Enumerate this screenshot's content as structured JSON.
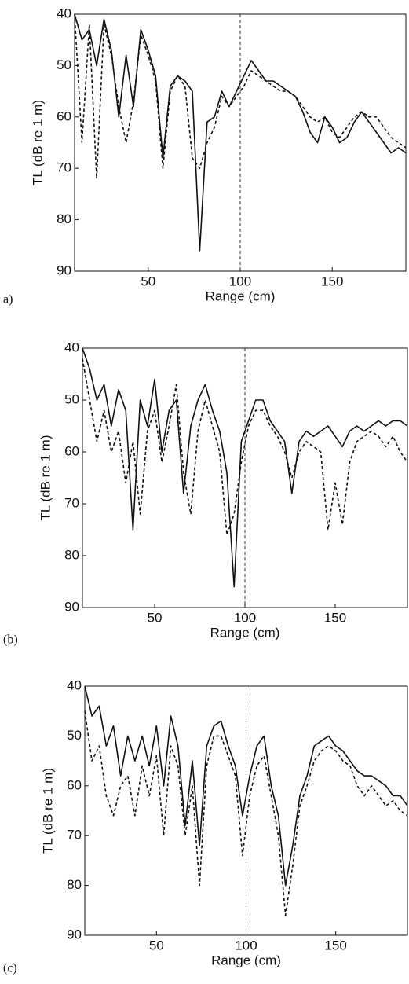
{
  "chart_data": [
    {
      "type": "line",
      "panel_label": "a)",
      "xlabel": "Range (cm)",
      "ylabel": "TL (dB re 1 m)",
      "xlim": [
        10,
        190
      ],
      "xticks": [
        50,
        100,
        150
      ],
      "ylim": [
        40,
        90
      ],
      "yticks": [
        40,
        50,
        60,
        70,
        80,
        90
      ],
      "invert_y": true,
      "grid": false,
      "vline": 100,
      "x": [
        10,
        14,
        18,
        22,
        26,
        30,
        34,
        38,
        42,
        46,
        50,
        54,
        58,
        62,
        66,
        70,
        74,
        78,
        82,
        86,
        90,
        94,
        98,
        102,
        106,
        110,
        114,
        118,
        122,
        126,
        130,
        134,
        138,
        142,
        146,
        150,
        154,
        158,
        162,
        166,
        170,
        174,
        178,
        182,
        186,
        190
      ],
      "series": [
        {
          "color": "#111111",
          "style": "solid",
          "values": [
            40,
            45,
            43,
            50,
            41,
            47,
            60,
            48,
            58,
            43,
            47,
            52,
            68,
            54,
            52,
            53,
            55,
            86,
            61,
            60,
            55,
            58,
            55,
            52,
            49,
            51,
            53,
            53,
            54,
            55,
            56,
            59,
            63,
            65,
            60,
            62,
            65,
            64,
            61,
            59,
            61,
            63,
            65,
            67,
            66,
            67
          ]
        },
        {
          "color": "#111111",
          "style": "dashed",
          "values": [
            40,
            65,
            42,
            72,
            42,
            48,
            58,
            65,
            57,
            44,
            48,
            53,
            70,
            55,
            52,
            54,
            68,
            70,
            65,
            62,
            56,
            58,
            56,
            54,
            51,
            52,
            53,
            54,
            55,
            55,
            56,
            58,
            60,
            61,
            60,
            63,
            64,
            62,
            60,
            59,
            60,
            60,
            62,
            64,
            65,
            66
          ]
        }
      ]
    },
    {
      "type": "line",
      "panel_label": "(b)",
      "xlabel": "Range (cm)",
      "ylabel": "TL (dB re 1 m)",
      "xlim": [
        10,
        190
      ],
      "xticks": [
        50,
        100,
        150
      ],
      "ylim": [
        40,
        90
      ],
      "yticks": [
        40,
        50,
        60,
        70,
        80,
        90
      ],
      "invert_y": true,
      "grid": false,
      "vline": 100,
      "x": [
        10,
        14,
        18,
        22,
        26,
        30,
        34,
        38,
        42,
        46,
        50,
        54,
        58,
        62,
        66,
        70,
        74,
        78,
        82,
        86,
        90,
        94,
        98,
        102,
        106,
        110,
        114,
        118,
        122,
        126,
        130,
        134,
        138,
        142,
        146,
        150,
        154,
        158,
        162,
        166,
        170,
        174,
        178,
        182,
        186,
        190
      ],
      "series": [
        {
          "color": "#111111",
          "style": "solid",
          "values": [
            40,
            44,
            50,
            47,
            55,
            48,
            52,
            75,
            50,
            55,
            46,
            60,
            52,
            50,
            68,
            55,
            50,
            47,
            52,
            56,
            64,
            86,
            58,
            54,
            50,
            50,
            54,
            56,
            58,
            68,
            58,
            56,
            57,
            56,
            55,
            57,
            59,
            56,
            55,
            56,
            55,
            54,
            55,
            54,
            54,
            55
          ]
        },
        {
          "color": "#111111",
          "style": "dashed",
          "values": [
            42,
            50,
            58,
            52,
            60,
            56,
            66,
            58,
            72,
            56,
            52,
            62,
            55,
            47,
            64,
            72,
            56,
            50,
            55,
            60,
            76,
            72,
            62,
            55,
            52,
            52,
            55,
            57,
            60,
            65,
            60,
            58,
            59,
            60,
            75,
            66,
            74,
            62,
            58,
            57,
            56,
            57,
            59,
            57,
            60,
            62
          ]
        }
      ]
    },
    {
      "type": "line",
      "panel_label": "(c)",
      "xlabel": "Range (cm)",
      "ylabel": "TL (dB re 1 m)",
      "xlim": [
        10,
        190
      ],
      "xticks": [
        50,
        100,
        150
      ],
      "ylim": [
        40,
        90
      ],
      "yticks": [
        40,
        50,
        60,
        70,
        80,
        90
      ],
      "invert_y": true,
      "grid": false,
      "vline": 100,
      "x": [
        10,
        14,
        18,
        22,
        26,
        30,
        34,
        38,
        42,
        46,
        50,
        54,
        58,
        62,
        66,
        70,
        74,
        78,
        82,
        86,
        90,
        94,
        98,
        102,
        106,
        110,
        114,
        118,
        122,
        126,
        130,
        134,
        138,
        142,
        146,
        150,
        154,
        158,
        162,
        166,
        170,
        174,
        178,
        182,
        186,
        190
      ],
      "series": [
        {
          "color": "#111111",
          "style": "solid",
          "values": [
            40,
            46,
            44,
            52,
            48,
            58,
            50,
            55,
            50,
            56,
            48,
            60,
            46,
            52,
            68,
            55,
            72,
            52,
            48,
            47,
            52,
            56,
            66,
            58,
            52,
            50,
            60,
            66,
            80,
            72,
            62,
            58,
            52,
            51,
            50,
            52,
            53,
            55,
            57,
            58,
            58,
            59,
            60,
            62,
            62,
            64
          ]
        },
        {
          "color": "#111111",
          "style": "dashed",
          "values": [
            45,
            55,
            52,
            62,
            66,
            60,
            58,
            66,
            56,
            62,
            54,
            70,
            52,
            56,
            70,
            60,
            80,
            56,
            50,
            50,
            54,
            58,
            74,
            62,
            56,
            54,
            62,
            70,
            86,
            76,
            64,
            60,
            55,
            53,
            52,
            53,
            55,
            56,
            60,
            62,
            60,
            62,
            64,
            63,
            65,
            66
          ]
        }
      ]
    }
  ]
}
